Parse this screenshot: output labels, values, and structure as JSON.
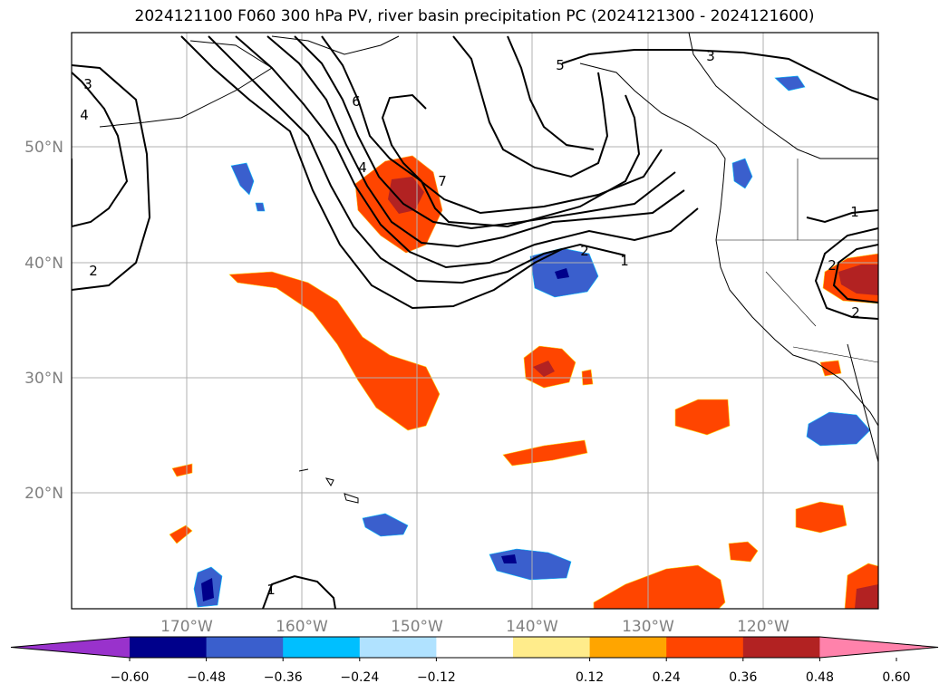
{
  "title": "2024121100 F060 300 hPa PV, river basin precipitation PC (2024121300 - 2024121600)",
  "lat_labels": [
    "50°N",
    "40°N",
    "30°N",
    "20°N"
  ],
  "lon_labels": [
    "170°W",
    "160°W",
    "150°W",
    "140°W",
    "130°W",
    "120°W"
  ],
  "contour_labels": [
    "3",
    "4",
    "2",
    "6",
    "4",
    "7",
    "5",
    "3",
    "2",
    "1",
    "1",
    "2",
    "2",
    "1"
  ],
  "colorbar": {
    "tick_labels": [
      "−0.60",
      "−0.48",
      "−0.36",
      "−0.24",
      "−0.12",
      "0.12",
      "0.24",
      "0.36",
      "0.48",
      "0.60"
    ],
    "colors": [
      "#9932cc",
      "#00008b",
      "#3a5fcd",
      "#00bfff",
      "#b0e2ff",
      "#ffffff",
      "#ffec8b",
      "#ffa500",
      "#ff4500",
      "#b22222",
      "#ff82ab"
    ]
  },
  "colors": {
    "contour": "#000000",
    "grid": "#b0b0b0",
    "axis_label": "#808080"
  }
}
